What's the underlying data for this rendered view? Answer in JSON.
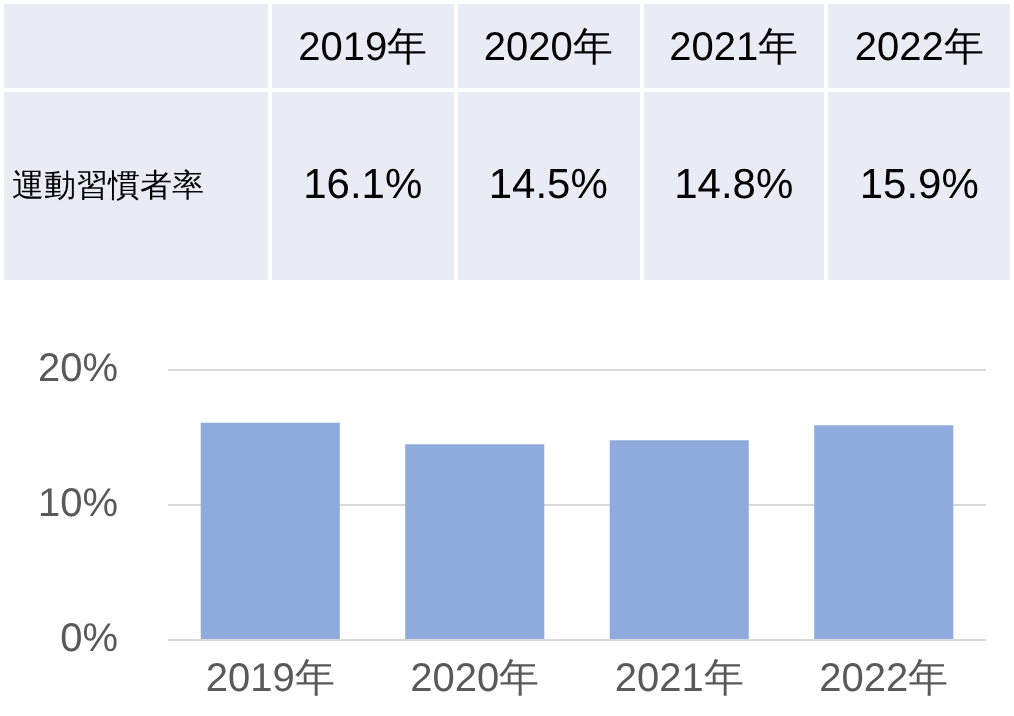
{
  "chart_data": {
    "type": "bar",
    "categories": [
      "2019年",
      "2020年",
      "2021年",
      "2022年"
    ],
    "series": [
      {
        "name": "運動習慣者率",
        "color": "#8faadc",
        "values": [
          16.1,
          14.5,
          14.8,
          15.9
        ],
        "value_labels": [
          "16.1%",
          "14.5%",
          "14.8%",
          "15.9%"
        ]
      }
    ],
    "ylim": [
      0,
      20
    ],
    "yticks": [
      {
        "value": 0,
        "label": "0%"
      },
      {
        "value": 10,
        "label": "10%"
      },
      {
        "value": 20,
        "label": "20%"
      }
    ],
    "grid": "y",
    "legend": false
  }
}
